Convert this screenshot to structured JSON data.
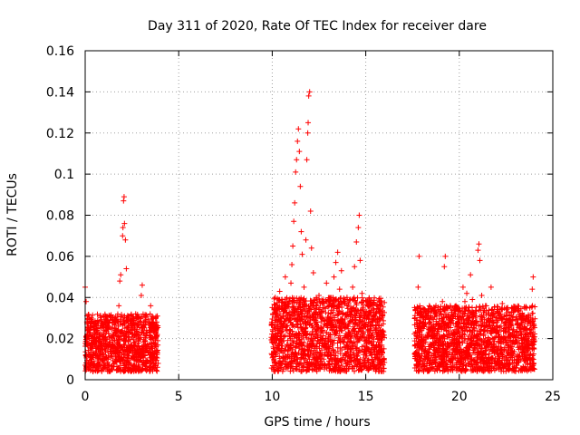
{
  "chart_data": {
    "type": "scatter",
    "title": "Day 311 of 2020, Rate Of TEC Index for receiver dare",
    "xlabel": "GPS time / hours",
    "ylabel": "ROTI / TECUs",
    "xlim": [
      0,
      25
    ],
    "ylim": [
      0,
      0.16
    ],
    "x_ticks": [
      0,
      5,
      10,
      15,
      20,
      25
    ],
    "x_tick_labels": [
      "0",
      "5",
      "10",
      "15",
      "20",
      "25"
    ],
    "y_ticks": [
      0,
      0.02,
      0.04,
      0.06,
      0.08,
      0.1,
      0.12,
      0.14,
      0.16
    ],
    "y_tick_labels": [
      "0",
      "0.02",
      "0.04",
      "0.06",
      "0.08",
      "0.1",
      "0.12",
      "0.14",
      "0.16"
    ],
    "grid": true,
    "marker": "+",
    "color": "#ff0000",
    "series": [
      {
        "name": "ROTI",
        "points": [
          [
            0.0,
            0.045
          ],
          [
            0.05,
            0.038
          ],
          [
            0.1,
            0.031
          ],
          [
            0.12,
            0.024
          ],
          [
            0.2,
            0.018
          ],
          [
            0.25,
            0.022
          ],
          [
            0.3,
            0.015
          ],
          [
            0.35,
            0.011
          ],
          [
            0.4,
            0.02
          ],
          [
            0.45,
            0.027
          ],
          [
            0.5,
            0.019
          ],
          [
            0.55,
            0.013
          ],
          [
            0.6,
            0.025
          ],
          [
            0.7,
            0.016
          ],
          [
            0.75,
            0.021
          ],
          [
            0.8,
            0.012
          ],
          [
            0.9,
            0.018
          ],
          [
            1.0,
            0.023
          ],
          [
            1.05,
            0.015
          ],
          [
            1.1,
            0.028
          ],
          [
            1.2,
            0.017
          ],
          [
            1.3,
            0.021
          ],
          [
            1.35,
            0.031
          ],
          [
            1.4,
            0.014
          ],
          [
            1.5,
            0.019
          ],
          [
            1.6,
            0.024
          ],
          [
            1.7,
            0.018
          ],
          [
            1.8,
            0.036
          ],
          [
            1.85,
            0.048
          ],
          [
            1.9,
            0.051
          ],
          [
            2.0,
            0.07
          ],
          [
            2.02,
            0.074
          ],
          [
            2.05,
            0.087
          ],
          [
            2.08,
            0.089
          ],
          [
            2.1,
            0.076
          ],
          [
            2.15,
            0.068
          ],
          [
            2.2,
            0.054
          ],
          [
            2.25,
            0.029
          ],
          [
            2.3,
            0.021
          ],
          [
            2.4,
            0.016
          ],
          [
            2.5,
            0.024
          ],
          [
            2.6,
            0.018
          ],
          [
            2.7,
            0.032
          ],
          [
            2.8,
            0.022
          ],
          [
            2.9,
            0.015
          ],
          [
            3.0,
            0.041
          ],
          [
            3.05,
            0.046
          ],
          [
            3.1,
            0.028
          ],
          [
            3.2,
            0.019
          ],
          [
            3.3,
            0.023
          ],
          [
            3.4,
            0.016
          ],
          [
            3.5,
            0.036
          ],
          [
            3.6,
            0.02
          ],
          [
            3.65,
            0.013
          ],
          [
            3.7,
            0.027
          ],
          [
            3.75,
            0.018
          ],
          [
            3.8,
            0.011
          ],
          [
            3.85,
            0.022
          ],
          [
            10.0,
            0.018
          ],
          [
            10.05,
            0.012
          ],
          [
            10.1,
            0.034
          ],
          [
            10.2,
            0.021
          ],
          [
            10.3,
            0.026
          ],
          [
            10.4,
            0.043
          ],
          [
            10.5,
            0.019
          ],
          [
            10.6,
            0.031
          ],
          [
            10.7,
            0.05
          ],
          [
            10.8,
            0.024
          ],
          [
            10.9,
            0.038
          ],
          [
            11.0,
            0.047
          ],
          [
            11.05,
            0.056
          ],
          [
            11.1,
            0.065
          ],
          [
            11.15,
            0.077
          ],
          [
            11.2,
            0.086
          ],
          [
            11.25,
            0.101
          ],
          [
            11.3,
            0.107
          ],
          [
            11.35,
            0.116
          ],
          [
            11.4,
            0.122
          ],
          [
            11.45,
            0.111
          ],
          [
            11.5,
            0.094
          ],
          [
            11.55,
            0.072
          ],
          [
            11.6,
            0.061
          ],
          [
            11.7,
            0.045
          ],
          [
            11.8,
            0.068
          ],
          [
            11.85,
            0.107
          ],
          [
            11.9,
            0.12
          ],
          [
            11.92,
            0.125
          ],
          [
            11.95,
            0.138
          ],
          [
            12.0,
            0.14
          ],
          [
            12.05,
            0.082
          ],
          [
            12.1,
            0.064
          ],
          [
            12.2,
            0.052
          ],
          [
            12.3,
            0.033
          ],
          [
            12.4,
            0.028
          ],
          [
            12.5,
            0.041
          ],
          [
            12.6,
            0.025
          ],
          [
            12.7,
            0.035
          ],
          [
            12.8,
            0.019
          ],
          [
            12.9,
            0.047
          ],
          [
            13.0,
            0.03
          ],
          [
            13.1,
            0.022
          ],
          [
            13.2,
            0.036
          ],
          [
            13.3,
            0.05
          ],
          [
            13.4,
            0.057
          ],
          [
            13.5,
            0.062
          ],
          [
            13.6,
            0.044
          ],
          [
            13.7,
            0.053
          ],
          [
            13.8,
            0.027
          ],
          [
            13.9,
            0.039
          ],
          [
            14.0,
            0.021
          ],
          [
            14.1,
            0.033
          ],
          [
            14.2,
            0.018
          ],
          [
            14.3,
            0.045
          ],
          [
            14.4,
            0.055
          ],
          [
            14.5,
            0.067
          ],
          [
            14.6,
            0.074
          ],
          [
            14.65,
            0.08
          ],
          [
            14.7,
            0.058
          ],
          [
            14.8,
            0.042
          ],
          [
            14.9,
            0.031
          ],
          [
            15.0,
            0.026
          ],
          [
            15.1,
            0.038
          ],
          [
            15.2,
            0.02
          ],
          [
            15.3,
            0.033
          ],
          [
            15.4,
            0.017
          ],
          [
            15.5,
            0.029
          ],
          [
            15.6,
            0.022
          ],
          [
            15.7,
            0.014
          ],
          [
            15.8,
            0.036
          ],
          [
            15.9,
            0.031
          ],
          [
            15.95,
            0.004
          ],
          [
            17.7,
            0.012
          ],
          [
            17.75,
            0.025
          ],
          [
            17.8,
            0.045
          ],
          [
            17.85,
            0.06
          ],
          [
            17.9,
            0.033
          ],
          [
            18.0,
            0.019
          ],
          [
            18.1,
            0.028
          ],
          [
            18.2,
            0.015
          ],
          [
            18.3,
            0.022
          ],
          [
            18.4,
            0.036
          ],
          [
            18.5,
            0.017
          ],
          [
            18.6,
            0.024
          ],
          [
            18.7,
            0.013
          ],
          [
            18.8,
            0.031
          ],
          [
            18.9,
            0.02
          ],
          [
            19.0,
            0.026
          ],
          [
            19.1,
            0.038
          ],
          [
            19.2,
            0.055
          ],
          [
            19.25,
            0.06
          ],
          [
            19.3,
            0.024
          ],
          [
            19.4,
            0.016
          ],
          [
            19.5,
            0.029
          ],
          [
            19.6,
            0.018
          ],
          [
            19.7,
            0.023
          ],
          [
            19.8,
            0.014
          ],
          [
            19.9,
            0.027
          ],
          [
            20.0,
            0.021
          ],
          [
            20.1,
            0.033
          ],
          [
            20.2,
            0.045
          ],
          [
            20.3,
            0.038
          ],
          [
            20.4,
            0.042
          ],
          [
            20.5,
            0.029
          ],
          [
            20.6,
            0.051
          ],
          [
            20.7,
            0.039
          ],
          [
            20.8,
            0.025
          ],
          [
            20.9,
            0.031
          ],
          [
            21.0,
            0.063
          ],
          [
            21.05,
            0.066
          ],
          [
            21.1,
            0.058
          ],
          [
            21.2,
            0.041
          ],
          [
            21.3,
            0.022
          ],
          [
            21.4,
            0.036
          ],
          [
            21.5,
            0.018
          ],
          [
            21.6,
            0.028
          ],
          [
            21.7,
            0.045
          ],
          [
            21.8,
            0.015
          ],
          [
            21.9,
            0.024
          ],
          [
            22.0,
            0.009
          ],
          [
            22.1,
            0.018
          ],
          [
            22.2,
            0.032
          ],
          [
            22.3,
            0.037
          ],
          [
            22.4,
            0.014
          ],
          [
            22.5,
            0.023
          ],
          [
            22.6,
            0.017
          ],
          [
            22.7,
            0.029
          ],
          [
            22.8,
            0.012
          ],
          [
            22.9,
            0.021
          ],
          [
            23.0,
            0.034
          ],
          [
            23.1,
            0.027
          ],
          [
            23.2,
            0.016
          ],
          [
            23.3,
            0.022
          ],
          [
            23.4,
            0.013
          ],
          [
            23.5,
            0.025
          ],
          [
            23.6,
            0.035
          ],
          [
            23.7,
            0.019
          ],
          [
            23.8,
            0.028
          ],
          [
            23.9,
            0.044
          ],
          [
            23.95,
            0.05
          ],
          [
            24.0,
            0.015
          ]
        ]
      }
    ],
    "bands": [
      {
        "x_start": 0.0,
        "x_end": 3.9,
        "y_low": 0.004,
        "y_high": 0.032
      },
      {
        "x_start": 9.95,
        "x_end": 16.0,
        "y_low": 0.004,
        "y_high": 0.04
      },
      {
        "x_start": 17.6,
        "x_end": 24.05,
        "y_low": 0.004,
        "y_high": 0.036
      }
    ]
  }
}
